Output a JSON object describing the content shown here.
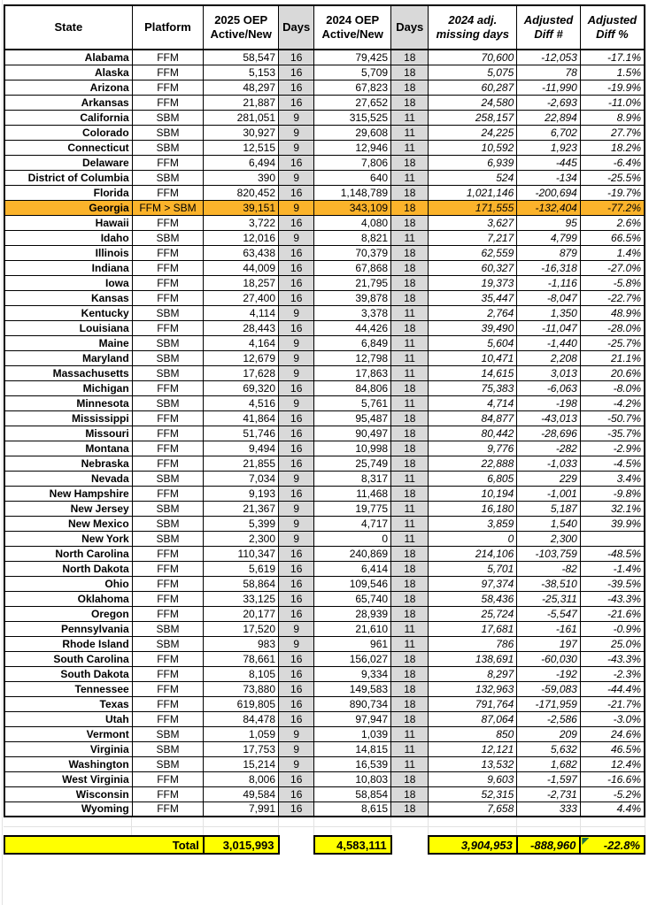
{
  "sheet": {
    "header": {
      "state": "State",
      "platform": "Platform",
      "oep2025": "2025 OEP\nActive/New",
      "days1": "Days",
      "oep2024": "2024 OEP\nActive/New",
      "days2": "Days",
      "adj_missing": "2024 adj.\nmissing days",
      "diff_num": "Adjusted\nDiff #",
      "diff_pct": "Adjusted\nDiff %"
    },
    "highlighted_state": "Georgia",
    "rows": [
      [
        "Alabama",
        "FFM",
        "58,547",
        "16",
        "79,425",
        "18",
        "70,600",
        "-12,053",
        "-17.1%"
      ],
      [
        "Alaska",
        "FFM",
        "5,153",
        "16",
        "5,709",
        "18",
        "5,075",
        "78",
        "1.5%"
      ],
      [
        "Arizona",
        "FFM",
        "48,297",
        "16",
        "67,823",
        "18",
        "60,287",
        "-11,990",
        "-19.9%"
      ],
      [
        "Arkansas",
        "FFM",
        "21,887",
        "16",
        "27,652",
        "18",
        "24,580",
        "-2,693",
        "-11.0%"
      ],
      [
        "California",
        "SBM",
        "281,051",
        "9",
        "315,525",
        "11",
        "258,157",
        "22,894",
        "8.9%"
      ],
      [
        "Colorado",
        "SBM",
        "30,927",
        "9",
        "29,608",
        "11",
        "24,225",
        "6,702",
        "27.7%"
      ],
      [
        "Connecticut",
        "SBM",
        "12,515",
        "9",
        "12,946",
        "11",
        "10,592",
        "1,923",
        "18.2%"
      ],
      [
        "Delaware",
        "FFM",
        "6,494",
        "16",
        "7,806",
        "18",
        "6,939",
        "-445",
        "-6.4%"
      ],
      [
        "District of Columbia",
        "SBM",
        "390",
        "9",
        "640",
        "11",
        "524",
        "-134",
        "-25.5%"
      ],
      [
        "Florida",
        "FFM",
        "820,452",
        "16",
        "1,148,789",
        "18",
        "1,021,146",
        "-200,694",
        "-19.7%"
      ],
      [
        "Georgia",
        "FFM > SBM",
        "39,151",
        "9",
        "343,109",
        "18",
        "171,555",
        "-132,404",
        "-77.2%"
      ],
      [
        "Hawaii",
        "FFM",
        "3,722",
        "16",
        "4,080",
        "18",
        "3,627",
        "95",
        "2.6%"
      ],
      [
        "Idaho",
        "SBM",
        "12,016",
        "9",
        "8,821",
        "11",
        "7,217",
        "4,799",
        "66.5%"
      ],
      [
        "Illinois",
        "FFM",
        "63,438",
        "16",
        "70,379",
        "18",
        "62,559",
        "879",
        "1.4%"
      ],
      [
        "Indiana",
        "FFM",
        "44,009",
        "16",
        "67,868",
        "18",
        "60,327",
        "-16,318",
        "-27.0%"
      ],
      [
        "Iowa",
        "FFM",
        "18,257",
        "16",
        "21,795",
        "18",
        "19,373",
        "-1,116",
        "-5.8%"
      ],
      [
        "Kansas",
        "FFM",
        "27,400",
        "16",
        "39,878",
        "18",
        "35,447",
        "-8,047",
        "-22.7%"
      ],
      [
        "Kentucky",
        "SBM",
        "4,114",
        "9",
        "3,378",
        "11",
        "2,764",
        "1,350",
        "48.9%"
      ],
      [
        "Louisiana",
        "FFM",
        "28,443",
        "16",
        "44,426",
        "18",
        "39,490",
        "-11,047",
        "-28.0%"
      ],
      [
        "Maine",
        "SBM",
        "4,164",
        "9",
        "6,849",
        "11",
        "5,604",
        "-1,440",
        "-25.7%"
      ],
      [
        "Maryland",
        "SBM",
        "12,679",
        "9",
        "12,798",
        "11",
        "10,471",
        "2,208",
        "21.1%"
      ],
      [
        "Massachusetts",
        "SBM",
        "17,628",
        "9",
        "17,863",
        "11",
        "14,615",
        "3,013",
        "20.6%"
      ],
      [
        "Michigan",
        "FFM",
        "69,320",
        "16",
        "84,806",
        "18",
        "75,383",
        "-6,063",
        "-8.0%"
      ],
      [
        "Minnesota",
        "SBM",
        "4,516",
        "9",
        "5,761",
        "11",
        "4,714",
        "-198",
        "-4.2%"
      ],
      [
        "Mississippi",
        "FFM",
        "41,864",
        "16",
        "95,487",
        "18",
        "84,877",
        "-43,013",
        "-50.7%"
      ],
      [
        "Missouri",
        "FFM",
        "51,746",
        "16",
        "90,497",
        "18",
        "80,442",
        "-28,696",
        "-35.7%"
      ],
      [
        "Montana",
        "FFM",
        "9,494",
        "16",
        "10,998",
        "18",
        "9,776",
        "-282",
        "-2.9%"
      ],
      [
        "Nebraska",
        "FFM",
        "21,855",
        "16",
        "25,749",
        "18",
        "22,888",
        "-1,033",
        "-4.5%"
      ],
      [
        "Nevada",
        "SBM",
        "7,034",
        "9",
        "8,317",
        "11",
        "6,805",
        "229",
        "3.4%"
      ],
      [
        "New Hampshire",
        "FFM",
        "9,193",
        "16",
        "11,468",
        "18",
        "10,194",
        "-1,001",
        "-9.8%"
      ],
      [
        "New Jersey",
        "SBM",
        "21,367",
        "9",
        "19,775",
        "11",
        "16,180",
        "5,187",
        "32.1%"
      ],
      [
        "New Mexico",
        "SBM",
        "5,399",
        "9",
        "4,717",
        "11",
        "3,859",
        "1,540",
        "39.9%"
      ],
      [
        "New York",
        "SBM",
        "2,300",
        "9",
        "0",
        "11",
        "0",
        "2,300",
        ""
      ],
      [
        "North Carolina",
        "FFM",
        "110,347",
        "16",
        "240,869",
        "18",
        "214,106",
        "-103,759",
        "-48.5%"
      ],
      [
        "North Dakota",
        "FFM",
        "5,619",
        "16",
        "6,414",
        "18",
        "5,701",
        "-82",
        "-1.4%"
      ],
      [
        "Ohio",
        "FFM",
        "58,864",
        "16",
        "109,546",
        "18",
        "97,374",
        "-38,510",
        "-39.5%"
      ],
      [
        "Oklahoma",
        "FFM",
        "33,125",
        "16",
        "65,740",
        "18",
        "58,436",
        "-25,311",
        "-43.3%"
      ],
      [
        "Oregon",
        "FFM",
        "20,177",
        "16",
        "28,939",
        "18",
        "25,724",
        "-5,547",
        "-21.6%"
      ],
      [
        "Pennsylvania",
        "SBM",
        "17,520",
        "9",
        "21,610",
        "11",
        "17,681",
        "-161",
        "-0.9%"
      ],
      [
        "Rhode Island",
        "SBM",
        "983",
        "9",
        "961",
        "11",
        "786",
        "197",
        "25.0%"
      ],
      [
        "South Carolina",
        "FFM",
        "78,661",
        "16",
        "156,027",
        "18",
        "138,691",
        "-60,030",
        "-43.3%"
      ],
      [
        "South Dakota",
        "FFM",
        "8,105",
        "16",
        "9,334",
        "18",
        "8,297",
        "-192",
        "-2.3%"
      ],
      [
        "Tennessee",
        "FFM",
        "73,880",
        "16",
        "149,583",
        "18",
        "132,963",
        "-59,083",
        "-44.4%"
      ],
      [
        "Texas",
        "FFM",
        "619,805",
        "16",
        "890,734",
        "18",
        "791,764",
        "-171,959",
        "-21.7%"
      ],
      [
        "Utah",
        "FFM",
        "84,478",
        "16",
        "97,947",
        "18",
        "87,064",
        "-2,586",
        "-3.0%"
      ],
      [
        "Vermont",
        "SBM",
        "1,059",
        "9",
        "1,039",
        "11",
        "850",
        "209",
        "24.6%"
      ],
      [
        "Virginia",
        "SBM",
        "17,753",
        "9",
        "14,815",
        "11",
        "12,121",
        "5,632",
        "46.5%"
      ],
      [
        "Washington",
        "SBM",
        "15,214",
        "9",
        "16,539",
        "11",
        "13,532",
        "1,682",
        "12.4%"
      ],
      [
        "West Virginia",
        "FFM",
        "8,006",
        "16",
        "10,803",
        "18",
        "9,603",
        "-1,597",
        "-16.6%"
      ],
      [
        "Wisconsin",
        "FFM",
        "49,584",
        "16",
        "58,854",
        "18",
        "52,315",
        "-2,731",
        "-5.2%"
      ],
      [
        "Wyoming",
        "FFM",
        "7,991",
        "16",
        "8,615",
        "18",
        "7,658",
        "333",
        "4.4%"
      ]
    ],
    "totals": {
      "label": "Total",
      "oep2025": "3,015,993",
      "oep2024": "4,583,111",
      "adj_missing": "3,904,953",
      "diff_num": "-888,960",
      "diff_pct": "-22.8%"
    },
    "colors": {
      "highlight_row": "#FBB32B",
      "days_column": "#D9D9D9",
      "total_row": "#FFFF00",
      "error_flag_triangle": "#1E7145"
    }
  }
}
